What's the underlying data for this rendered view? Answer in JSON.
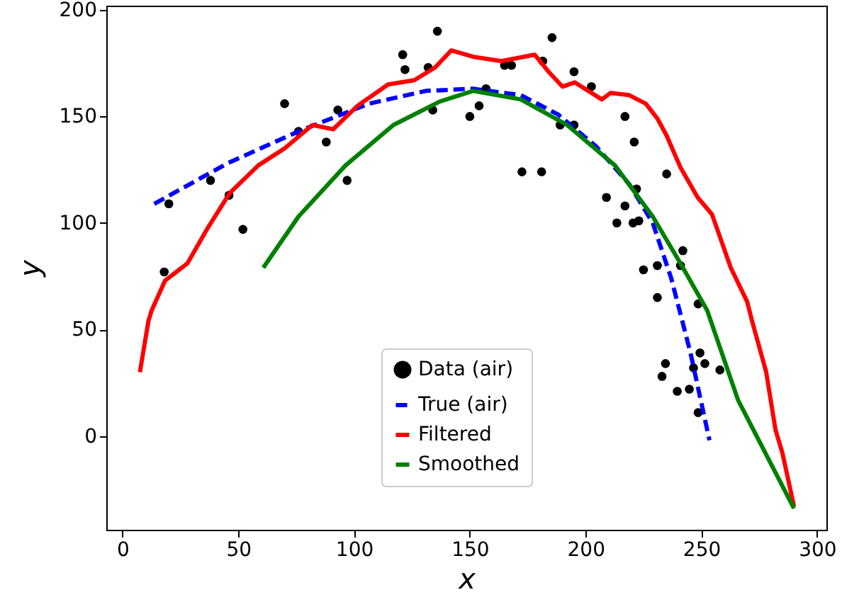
{
  "chart_data": {
    "type": "line",
    "xlabel": "x",
    "ylabel": "y",
    "xlim": [
      -7,
      304
    ],
    "ylim": [
      -44,
      202
    ],
    "xticks": [
      0,
      50,
      100,
      150,
      200,
      250,
      300
    ],
    "yticks": [
      0,
      50,
      100,
      150,
      200
    ],
    "grid": false,
    "legend": "bottom",
    "series": [
      {
        "name": "Data (air)",
        "type": "scatter",
        "marker": "circle",
        "color": "#000000",
        "x": [
          18,
          20,
          38,
          46,
          52,
          70,
          76,
          88,
          93,
          97,
          121,
          122,
          132,
          134,
          136,
          150,
          154,
          157,
          165,
          168,
          172.5,
          181,
          181.5,
          185.5,
          189,
          195,
          195,
          202.5,
          217,
          221,
          222,
          209,
          217,
          213.5,
          220.5,
          223,
          235,
          225,
          231,
          242,
          241,
          231,
          248.6,
          249.4,
          246.6,
          251.5,
          234.5,
          233,
          239.6,
          244.8,
          248.6,
          258
        ],
        "values": [
          77,
          109,
          120,
          113,
          97,
          156,
          143,
          138,
          153,
          120,
          179,
          172,
          173,
          153,
          190,
          150,
          155,
          163,
          174,
          174,
          124,
          124,
          176,
          187,
          146,
          146,
          171,
          164,
          150,
          138,
          116,
          112,
          108,
          100,
          100,
          101,
          123,
          78,
          80,
          87,
          80,
          65,
          62,
          39,
          32,
          34,
          34,
          28,
          21,
          22,
          11,
          31
        ]
      },
      {
        "name": "True (air)",
        "line_style": "dashed",
        "marker": "none",
        "color": "#0000ff",
        "x": [
          13.7,
          45.3,
          76,
          106.5,
          131,
          151.4,
          172,
          188,
          204.5,
          219,
          229,
          237,
          245.3,
          253.5
        ],
        "values": [
          109,
          128,
          143,
          156,
          162,
          163,
          160,
          151,
          136,
          118,
          100,
          74,
          39,
          -2
        ]
      },
      {
        "name": "Filtered",
        "line_style": "solid",
        "marker": "none",
        "color": "#ff0000",
        "x": [
          7.5,
          11.2,
          12.6,
          18.4,
          28,
          37,
          46.3,
          58.6,
          70,
          82,
          91,
          101.5,
          114.7,
          126,
          135,
          142,
          151.5,
          163.7,
          178,
          184,
          190,
          195.3,
          207,
          210.7,
          218.8,
          226,
          231,
          235,
          241,
          248.4,
          254.6,
          262.7,
          269.8,
          271.9,
          278,
          282,
          285,
          290
        ],
        "values": [
          30,
          54,
          59,
          73,
          81,
          98,
          114,
          127,
          135,
          146,
          144,
          155,
          165,
          167,
          173,
          181,
          178,
          176,
          179,
          171,
          164,
          166,
          158,
          161,
          160,
          156,
          149,
          141,
          126,
          112,
          104,
          79,
          63,
          54,
          30,
          3,
          -8,
          -33
        ]
      },
      {
        "name": "Smoothed",
        "line_style": "solid",
        "marker": "none",
        "color": "#008000",
        "x": [
          60.8,
          76,
          96.3,
          117,
          137,
          151.4,
          172,
          192,
          212.7,
          229,
          241,
          252.5,
          265.8,
          290
        ],
        "values": [
          79,
          103,
          127,
          146,
          157,
          162,
          158,
          146,
          127,
          103,
          81,
          59,
          17,
          -34
        ]
      }
    ]
  }
}
